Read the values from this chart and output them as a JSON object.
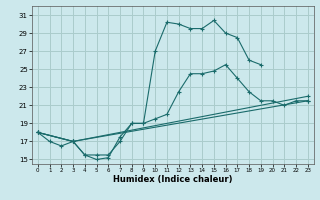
{
  "xlabel": "Humidex (Indice chaleur)",
  "bg_color": "#cce8ec",
  "grid_color": "#aacccc",
  "line_color": "#1a6b6b",
  "ylim": [
    14.5,
    32.0
  ],
  "xlim": [
    -0.5,
    23.5
  ],
  "yticks": [
    15,
    17,
    19,
    21,
    23,
    25,
    27,
    29,
    31
  ],
  "xticks": [
    0,
    1,
    2,
    3,
    4,
    5,
    6,
    7,
    8,
    9,
    10,
    11,
    12,
    13,
    14,
    15,
    16,
    17,
    18,
    19,
    20,
    21,
    22,
    23
  ],
  "line1_x": [
    0,
    1,
    2,
    3,
    4,
    5,
    6,
    7,
    8,
    9,
    10,
    11,
    12,
    13,
    14,
    15,
    16,
    17,
    18,
    19
  ],
  "line1_y": [
    18.0,
    17.0,
    16.5,
    17.0,
    15.5,
    15.5,
    15.5,
    17.0,
    19.0,
    19.0,
    27.0,
    30.2,
    30.0,
    29.5,
    29.5,
    30.4,
    29.0,
    28.5,
    26.0,
    25.5
  ],
  "line2_x": [
    0,
    3,
    4,
    5,
    6,
    7,
    8,
    9,
    10,
    11,
    12,
    13,
    14,
    15,
    16,
    17,
    18,
    19,
    20,
    21,
    22,
    23
  ],
  "line2_y": [
    18.0,
    17.0,
    15.5,
    15.0,
    15.2,
    17.5,
    19.0,
    19.0,
    19.5,
    20.0,
    22.5,
    24.5,
    24.5,
    24.8,
    25.5,
    24.0,
    22.5,
    21.5,
    21.5,
    21.0,
    21.5,
    21.5
  ],
  "line3_x": [
    0,
    3,
    23
  ],
  "line3_y": [
    18.0,
    17.0,
    22.0
  ],
  "line4_x": [
    0,
    3,
    23
  ],
  "line4_y": [
    18.0,
    17.0,
    21.5
  ]
}
